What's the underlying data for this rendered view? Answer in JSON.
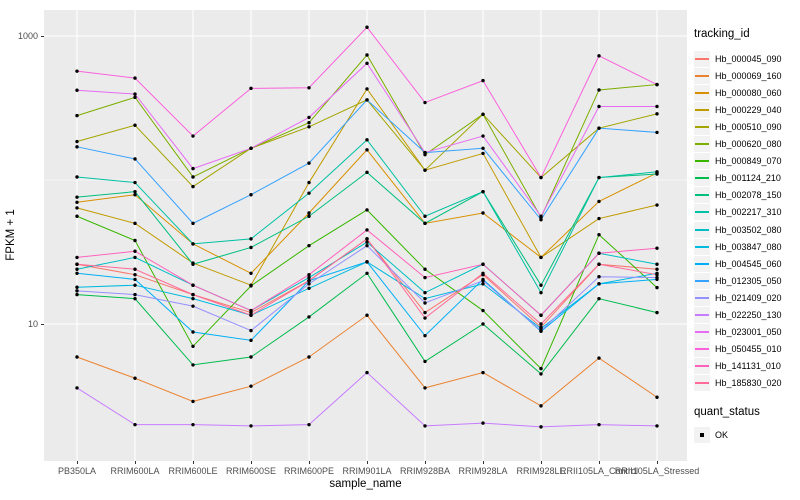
{
  "figure": {
    "background": "#FFFFFF",
    "panel_background": "#EBEBEB",
    "grid_color": "#FFFFFF",
    "axis_text_color": "#4D4D4D",
    "legend_key_background": "#F2F2F2",
    "point_color": "#000000"
  },
  "axes": {
    "x_title": "sample_name",
    "y_title": "FPKM + 1",
    "y_tick_labels": [
      "1000",
      "10"
    ]
  },
  "legend": {
    "color_legend_title": "tracking_id",
    "shape_legend_title": "quant_status",
    "shape_items": [
      {
        "label": "OK",
        "shape": "filled-square-point"
      }
    ]
  },
  "chart_data": {
    "type": "line",
    "title": "",
    "xlabel": "sample_name",
    "ylabel": "FPKM + 1",
    "y_scale": "log10",
    "ylim": [
      1.12,
      1516
    ],
    "y_major_breaks": [
      10,
      1000
    ],
    "y_minor_breaks": [
      100
    ],
    "grid": true,
    "legend_position": "right",
    "x_categories": [
      "PB350LA",
      "RRIM600LA",
      "RRIM600LE",
      "RRIM600SE",
      "RRIM600PE",
      "RRIM901LA",
      "RRIM928BA",
      "RRIM928LA",
      "RRIM928LE",
      "RRII105LA_Control",
      "RRII105LA_Stressed"
    ],
    "series": [
      {
        "name": "Hb_000045_090",
        "color": "#F8766D",
        "values": [
          26,
          22,
          16,
          12,
          20,
          39,
          12,
          22,
          9.5,
          26,
          24
        ]
      },
      {
        "name": "Hb_000069_160",
        "color": "#EA8331",
        "values": [
          5.9,
          4.2,
          2.9,
          3.7,
          5.9,
          11.5,
          3.6,
          4.6,
          2.7,
          5.8,
          3.1
        ]
      },
      {
        "name": "Hb_000080_060",
        "color": "#D89000",
        "values": [
          70,
          79,
          36,
          22.5,
          59,
          162,
          50,
          59,
          29,
          71,
          112
        ]
      },
      {
        "name": "Hb_000229_040",
        "color": "#C09B00",
        "values": [
          64,
          50,
          26.5,
          18.6,
          96,
          429,
          117,
          153,
          29,
          54,
          67
        ]
      },
      {
        "name": "Hb_000510_090",
        "color": "#A3A500",
        "values": [
          185,
          240,
          90,
          166,
          234,
          360,
          117,
          286,
          104,
          229,
          288
        ]
      },
      {
        "name": "Hb_000620_080",
        "color": "#7CAE00",
        "values": [
          280,
          375,
          105,
          166,
          250,
          738,
          150,
          286,
          55,
          422,
          460
        ]
      },
      {
        "name": "Hb_000849_070",
        "color": "#39B600",
        "values": [
          56,
          38,
          7,
          18.4,
          35,
          62,
          24,
          12.4,
          4.9,
          41.7,
          17.9
        ]
      },
      {
        "name": "Hb_001124_210",
        "color": "#00BB4E",
        "values": [
          16,
          15,
          5.2,
          5.9,
          11.2,
          22.5,
          5.5,
          10,
          4.5,
          15,
          12
        ]
      },
      {
        "name": "Hb_002078_150",
        "color": "#00BF7D",
        "values": [
          76,
          83,
          26,
          34,
          56,
          113,
          50,
          83,
          18.6,
          104,
          110
        ]
      },
      {
        "name": "Hb_002217_310",
        "color": "#00C1A3",
        "values": [
          105,
          96,
          36,
          39,
          81,
          190,
          56,
          83,
          16.5,
          104,
          114
        ]
      },
      {
        "name": "Hb_003502_080",
        "color": "#00BFC4",
        "values": [
          24,
          29,
          18.6,
          12.4,
          21,
          37,
          16.5,
          26,
          11.5,
          31,
          26
        ]
      },
      {
        "name": "Hb_003847_080",
        "color": "#00BAE0",
        "values": [
          18,
          18.6,
          15,
          11.5,
          17.7,
          27,
          15,
          19,
          9.3,
          19,
          22.5
        ]
      },
      {
        "name": "Hb_004545_060",
        "color": "#00B0F6",
        "values": [
          22.5,
          20.4,
          8.8,
          7.7,
          20,
          27,
          8.3,
          20.4,
          8.9,
          19,
          20.4
        ]
      },
      {
        "name": "Hb_012305_050",
        "color": "#35A2FF",
        "values": [
          170,
          140,
          50,
          79,
          131,
          360,
          155,
          166,
          53,
          229,
          214
        ]
      },
      {
        "name": "Hb_021409_020",
        "color": "#9590FF",
        "values": [
          17,
          16,
          13.3,
          9,
          19,
          35,
          14,
          20,
          9,
          21.3,
          21
        ]
      },
      {
        "name": "Hb_022250_130",
        "color": "#C77CFF",
        "values": [
          3.6,
          2.0,
          2.0,
          1.96,
          2.0,
          4.6,
          1.96,
          2.05,
          1.93,
          2.0,
          1.96
        ]
      },
      {
        "name": "Hb_023001_050",
        "color": "#E76BF3",
        "values": [
          420,
          395,
          120,
          166,
          272,
          646,
          155,
          202,
          56,
          324,
          324
        ]
      },
      {
        "name": "Hb_050455_010",
        "color": "#FA62DB",
        "values": [
          570,
          510,
          202,
          433,
          437,
          1150,
          345,
          490,
          104,
          728,
          460
        ]
      },
      {
        "name": "Hb_141131_010",
        "color": "#FF62BC",
        "values": [
          29,
          32,
          18.6,
          12.4,
          22,
          45,
          21,
          26,
          11.5,
          31,
          33.6
        ]
      },
      {
        "name": "Hb_185830_020",
        "color": "#FF6A98",
        "values": [
          26,
          24,
          16,
          11.5,
          20,
          39,
          11,
          22.5,
          10,
          26,
          22
        ]
      }
    ],
    "quant_status": "OK"
  }
}
